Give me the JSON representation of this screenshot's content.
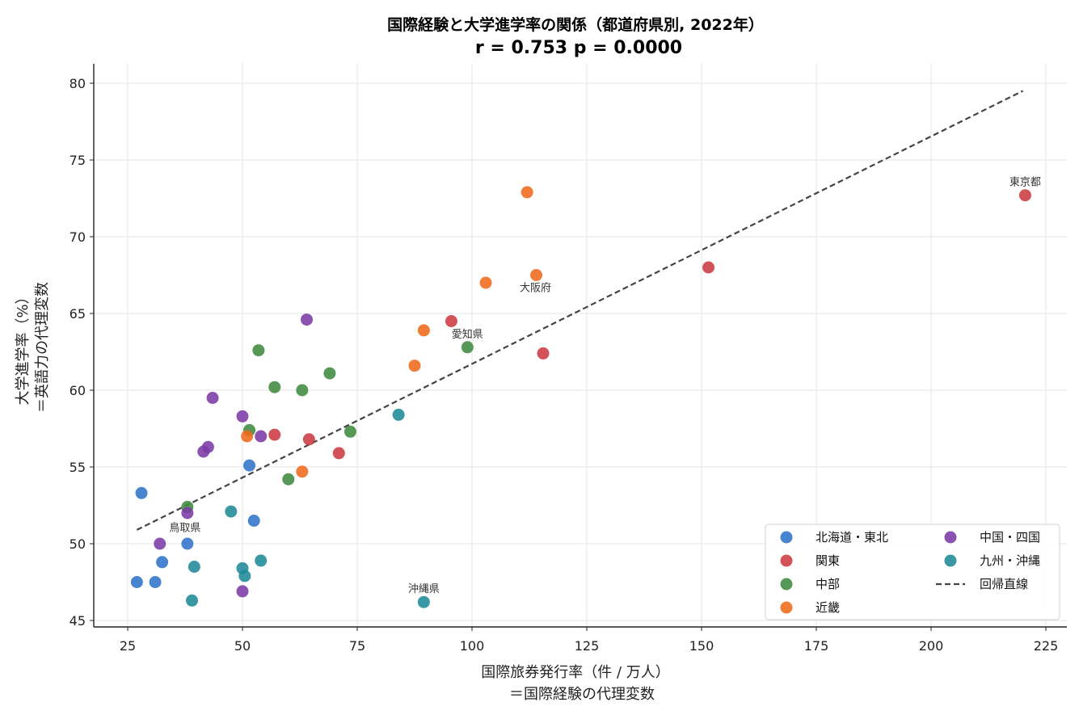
{
  "chart_data": {
    "type": "scatter",
    "title": "国際経験と大学進学率の関係（都道府県別, 2022年）",
    "subtitle": "r = 0.753  p = 0.0000",
    "xlabel": [
      "国際旅券発行率（件 / 万人）",
      "＝国際経験の代理変数"
    ],
    "ylabel": [
      "大学進学率（%）",
      "＝英語力の代理変数"
    ],
    "xlim": [
      17,
      230
    ],
    "ylim": [
      44.5,
      81.2
    ],
    "xticks": [
      25,
      50,
      75,
      100,
      125,
      150,
      175,
      200,
      225
    ],
    "yticks": [
      45,
      50,
      55,
      60,
      65,
      70,
      75,
      80
    ],
    "grid": true,
    "legend_position": "lower-right",
    "legend_columns": 2,
    "series": [
      {
        "name": "北海道・東北",
        "color": "#2f73c9",
        "points": [
          [
            28,
            53.3
          ],
          [
            38,
            50
          ],
          [
            32.5,
            48.8
          ],
          [
            27,
            47.5
          ],
          [
            31,
            47.5
          ],
          [
            51.5,
            55.1
          ],
          [
            52.5,
            51.5
          ]
        ]
      },
      {
        "name": "関東",
        "color": "#cc3a42",
        "points": [
          [
            220.5,
            72.7
          ],
          [
            151.5,
            68
          ],
          [
            95.5,
            64.5
          ],
          [
            115.5,
            62.4
          ],
          [
            57,
            57.1
          ],
          [
            64.5,
            56.8
          ],
          [
            71,
            55.9
          ]
        ]
      },
      {
        "name": "中部",
        "color": "#3f8a3f",
        "points": [
          [
            53.5,
            62.6
          ],
          [
            57,
            60.2
          ],
          [
            63,
            60
          ],
          [
            69,
            61.1
          ],
          [
            99,
            62.8
          ],
          [
            51.5,
            57.4
          ],
          [
            73.5,
            57.3
          ],
          [
            60,
            54.2
          ],
          [
            38,
            52.4
          ]
        ]
      },
      {
        "name": "近畿",
        "color": "#ef6a1c",
        "points": [
          [
            112,
            72.9
          ],
          [
            103,
            67
          ],
          [
            114,
            67.5
          ],
          [
            89.5,
            63.9
          ],
          [
            87.5,
            61.6
          ],
          [
            51,
            57
          ],
          [
            63,
            54.7
          ]
        ]
      },
      {
        "name": "中国・四国",
        "color": "#7b3aa6",
        "points": [
          [
            64,
            64.6
          ],
          [
            43.5,
            59.5
          ],
          [
            50,
            58.3
          ],
          [
            54,
            57
          ],
          [
            42.5,
            56.3
          ],
          [
            41.5,
            56
          ],
          [
            38,
            52
          ],
          [
            32,
            50
          ],
          [
            50,
            46.9
          ]
        ]
      },
      {
        "name": "九州・沖縄",
        "color": "#1f8a98",
        "points": [
          [
            84,
            58.4
          ],
          [
            47.5,
            52.1
          ],
          [
            39.5,
            48.5
          ],
          [
            50,
            48.4
          ],
          [
            54,
            48.9
          ],
          [
            50.5,
            47.9
          ],
          [
            39,
            46.3
          ],
          [
            89.5,
            46.2
          ]
        ]
      }
    ],
    "regression_line": {
      "name": "回帰直線",
      "color": "#444444",
      "x": [
        27,
        220
      ],
      "y": [
        50.9,
        79.5
      ]
    },
    "annotations": [
      {
        "text": "東京都",
        "x": 220.5,
        "y": 72.7
      },
      {
        "text": "大阪府",
        "x": 114,
        "y": 67.5
      },
      {
        "text": "愛知県",
        "x": 99,
        "y": 62.8
      },
      {
        "text": "鳥取県",
        "x": 38,
        "y": 52.4
      },
      {
        "text": "沖縄県",
        "x": 89.5,
        "y": 46.2
      }
    ]
  }
}
